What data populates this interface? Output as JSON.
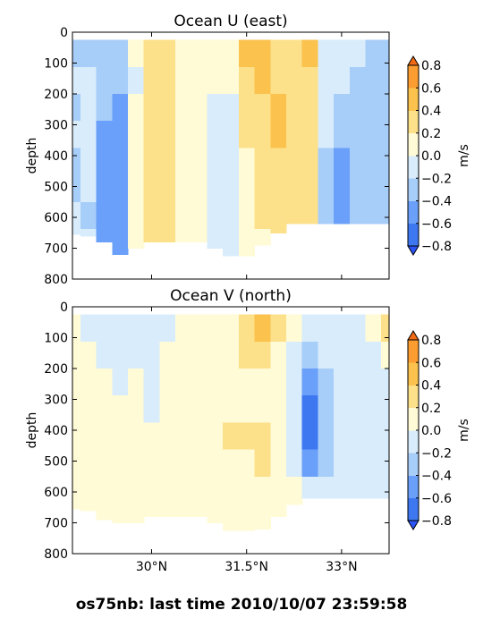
{
  "figure": {
    "suptitle": "os75nb: last time 2010/10/07 23:59:58"
  },
  "colorbar": {
    "label": "m/s",
    "levels": [
      -0.8,
      -0.6,
      -0.4,
      -0.2,
      0.0,
      0.2,
      0.4,
      0.6,
      0.8
    ],
    "tick_labels": [
      "−0.8",
      "−0.6",
      "−0.4",
      "−0.2",
      "0.0",
      "0.2",
      "0.4",
      "0.6",
      "0.8"
    ],
    "colors": [
      "#2b53f5",
      "#3d78f0",
      "#6aa0f9",
      "#a7cdf9",
      "#d9ecfb",
      "#fffbd6",
      "#fde08a",
      "#fbc24d",
      "#fb9d31",
      "#f26b16"
    ]
  },
  "chart_data": [
    {
      "type": "heatmap",
      "title": "Ocean U (east)",
      "ylabel": "depth",
      "xlabel": "",
      "ylim": [
        800,
        0
      ],
      "xlim": [
        28.75,
        33.75
      ],
      "x_ticks": [
        30,
        31.5,
        33
      ],
      "x_tick_labels": [],
      "y_ticks": [
        0,
        100,
        200,
        300,
        400,
        500,
        600,
        700,
        800
      ],
      "y_tick_labels": [
        "0",
        "100",
        "200",
        "300",
        "400",
        "500",
        "600",
        "700",
        "800"
      ],
      "data_depth_range": [
        25,
        725
      ],
      "columns": [
        {
          "x": 28.75,
          "bottom": 655,
          "u": [
            -0.35,
            -0.2,
            -0.25,
            -0.2,
            -0.25,
            -0.25,
            -0.2,
            -0.2
          ]
        },
        {
          "x": 29.0,
          "bottom": 660,
          "u": [
            -0.25,
            -0.15,
            -0.15,
            -0.2,
            -0.2,
            -0.2,
            -0.25,
            -0.2
          ]
        },
        {
          "x": 29.25,
          "bottom": 680,
          "u": [
            -0.3,
            -0.25,
            -0.3,
            -0.45,
            -0.5,
            -0.45,
            -0.5,
            -0.45
          ]
        },
        {
          "x": 29.5,
          "bottom": 720,
          "u": [
            -0.25,
            -0.35,
            -0.45,
            -0.55,
            -0.5,
            -0.55,
            -0.55,
            -0.5
          ]
        },
        {
          "x": 29.75,
          "bottom": 700,
          "u": [
            0.05,
            -0.05,
            0.05,
            0.1,
            0.05,
            0.05,
            0.1,
            0.1
          ]
        },
        {
          "x": 30.0,
          "bottom": 680,
          "u": [
            0.35,
            0.3,
            0.25,
            0.25,
            0.3,
            0.3,
            0.3,
            0.25
          ]
        },
        {
          "x": 30.25,
          "bottom": 680,
          "u": [
            0.3,
            0.25,
            0.3,
            0.3,
            0.25,
            0.3,
            0.35,
            0.3
          ]
        },
        {
          "x": 30.5,
          "bottom": 680,
          "u": [
            0.15,
            0.1,
            0.15,
            0.15,
            0.15,
            0.1,
            0.15,
            0.15
          ]
        },
        {
          "x": 30.75,
          "bottom": 680,
          "u": [
            0.1,
            0.15,
            0.1,
            0.05,
            0.1,
            0.05,
            0.05,
            0.05
          ]
        },
        {
          "x": 31.0,
          "bottom": 700,
          "u": [
            0.05,
            0.05,
            -0.05,
            -0.1,
            -0.1,
            -0.1,
            -0.1,
            -0.1
          ]
        },
        {
          "x": 31.25,
          "bottom": 740,
          "u": [
            0.1,
            0.05,
            -0.05,
            -0.1,
            -0.15,
            -0.1,
            -0.1,
            -0.1
          ]
        },
        {
          "x": 31.5,
          "bottom": 740,
          "u": [
            0.5,
            0.35,
            0.3,
            0.25,
            0.1,
            0.05,
            0.0,
            0.05
          ]
        },
        {
          "x": 31.75,
          "bottom": 690,
          "u": [
            0.55,
            0.45,
            0.35,
            0.3,
            0.25,
            0.25,
            0.25,
            0.15
          ]
        },
        {
          "x": 32.0,
          "bottom": 650,
          "u": [
            0.35,
            0.3,
            0.45,
            0.5,
            0.3,
            0.25,
            0.25,
            0.3
          ]
        },
        {
          "x": 32.25,
          "bottom": 620,
          "u": [
            0.25,
            0.2,
            0.25,
            0.3,
            0.25,
            0.3,
            0.2,
            0.25
          ]
        },
        {
          "x": 32.5,
          "bottom": 620,
          "u": [
            0.45,
            0.35,
            0.35,
            0.3,
            0.35,
            0.3,
            0.35,
            0.25
          ]
        },
        {
          "x": 32.75,
          "bottom": 620,
          "u": [
            -0.1,
            -0.15,
            -0.15,
            -0.2,
            -0.25,
            -0.3,
            -0.25,
            -0.2
          ]
        },
        {
          "x": 33.0,
          "bottom": 620,
          "u": [
            -0.1,
            -0.2,
            -0.35,
            -0.4,
            -0.45,
            -0.45,
            -0.45,
            -0.45
          ]
        },
        {
          "x": 33.25,
          "bottom": 620,
          "u": [
            -0.2,
            -0.25,
            -0.35,
            -0.35,
            -0.4,
            -0.4,
            -0.35,
            -0.35
          ]
        },
        {
          "x": 33.5,
          "bottom": 620,
          "u": [
            -0.25,
            -0.25,
            -0.3,
            -0.35,
            -0.3,
            -0.35,
            -0.35,
            -0.35
          ]
        },
        {
          "x": 33.75,
          "bottom": 620,
          "u": [
            -0.25,
            -0.25,
            -0.3,
            -0.35,
            -0.35,
            -0.35,
            -0.4,
            -0.35
          ]
        }
      ]
    },
    {
      "type": "heatmap",
      "title": "Ocean V (north)",
      "ylabel": "depth",
      "xlabel": "",
      "ylim": [
        800,
        0
      ],
      "xlim": [
        28.75,
        33.75
      ],
      "x_ticks": [
        30,
        31.5,
        33
      ],
      "x_tick_labels": [
        "30°N",
        "31.5°N",
        "33°N"
      ],
      "y_ticks": [
        0,
        100,
        200,
        300,
        400,
        500,
        600,
        700,
        800
      ],
      "y_tick_labels": [
        "0",
        "100",
        "200",
        "300",
        "400",
        "500",
        "600",
        "700",
        "800"
      ],
      "data_depth_range": [
        25,
        725
      ],
      "columns": [
        {
          "x": 28.75,
          "bottom": 655,
          "v": [
            0.1,
            0.05,
            0.05,
            0.05,
            0.05,
            0.05,
            0.05,
            0.05
          ]
        },
        {
          "x": 29.0,
          "bottom": 660,
          "v": [
            -0.05,
            0.05,
            0.05,
            0.05,
            0.05,
            0.05,
            0.05,
            0.05
          ]
        },
        {
          "x": 29.25,
          "bottom": 690,
          "v": [
            -0.1,
            -0.05,
            0.05,
            0.05,
            0.05,
            0.05,
            0.05,
            0.05
          ]
        },
        {
          "x": 29.5,
          "bottom": 700,
          "v": [
            -0.1,
            -0.1,
            -0.05,
            0.05,
            0.05,
            0.05,
            0.05,
            0.05
          ]
        },
        {
          "x": 29.75,
          "bottom": 700,
          "v": [
            -0.05,
            -0.05,
            0.05,
            0.05,
            0.05,
            0.1,
            0.1,
            0.05
          ]
        },
        {
          "x": 30.0,
          "bottom": 680,
          "v": [
            -0.05,
            -0.1,
            -0.1,
            -0.05,
            0.05,
            0.05,
            0.05,
            0.05
          ]
        },
        {
          "x": 30.25,
          "bottom": 680,
          "v": [
            -0.05,
            0.05,
            0.05,
            0.05,
            0.05,
            0.05,
            0.05,
            0.05
          ]
        },
        {
          "x": 30.5,
          "bottom": 680,
          "v": [
            0.05,
            0.05,
            0.05,
            0.05,
            0.05,
            0.05,
            0.05,
            0.05
          ]
        },
        {
          "x": 30.75,
          "bottom": 680,
          "v": [
            0.05,
            0.05,
            0.05,
            0.05,
            0.05,
            0.05,
            0.05,
            0.05
          ]
        },
        {
          "x": 31.0,
          "bottom": 700,
          "v": [
            0.05,
            0.05,
            0.05,
            0.05,
            0.1,
            0.05,
            0.05,
            0.05
          ]
        },
        {
          "x": 31.25,
          "bottom": 740,
          "v": [
            0.05,
            0.05,
            0.05,
            0.1,
            0.25,
            0.15,
            0.05,
            0.05
          ]
        },
        {
          "x": 31.5,
          "bottom": 750,
          "v": [
            0.3,
            0.2,
            0.1,
            0.15,
            0.2,
            0.1,
            0.05,
            0.05
          ]
        },
        {
          "x": 31.75,
          "bottom": 720,
          "v": [
            0.45,
            0.2,
            0.1,
            0.1,
            0.25,
            0.2,
            0.1,
            0.05
          ]
        },
        {
          "x": 32.0,
          "bottom": 680,
          "v": [
            0.3,
            0.15,
            0.1,
            0.1,
            0.05,
            0.05,
            0.05,
            0.05
          ]
        },
        {
          "x": 32.25,
          "bottom": 640,
          "v": [
            0.1,
            -0.1,
            -0.15,
            -0.15,
            -0.15,
            -0.1,
            0.05,
            0.05
          ]
        },
        {
          "x": 32.5,
          "bottom": 620,
          "v": [
            -0.2,
            -0.3,
            -0.55,
            -0.65,
            -0.7,
            -0.5,
            -0.2,
            -0.1
          ]
        },
        {
          "x": 32.75,
          "bottom": 620,
          "v": [
            -0.1,
            -0.2,
            -0.3,
            -0.35,
            -0.3,
            -0.25,
            -0.15,
            -0.1
          ]
        },
        {
          "x": 33.0,
          "bottom": 620,
          "v": [
            -0.05,
            -0.1,
            -0.2,
            -0.2,
            -0.2,
            -0.15,
            -0.1,
            -0.1
          ]
        },
        {
          "x": 33.25,
          "bottom": 620,
          "v": [
            -0.05,
            -0.1,
            -0.15,
            -0.15,
            -0.1,
            -0.1,
            -0.1,
            -0.1
          ]
        },
        {
          "x": 33.5,
          "bottom": 620,
          "v": [
            0.15,
            -0.05,
            -0.1,
            -0.15,
            -0.15,
            -0.1,
            -0.1,
            -0.1
          ]
        },
        {
          "x": 33.75,
          "bottom": 620,
          "v": [
            0.25,
            0.05,
            -0.05,
            -0.1,
            -0.1,
            -0.1,
            -0.1,
            -0.1
          ]
        }
      ]
    }
  ]
}
